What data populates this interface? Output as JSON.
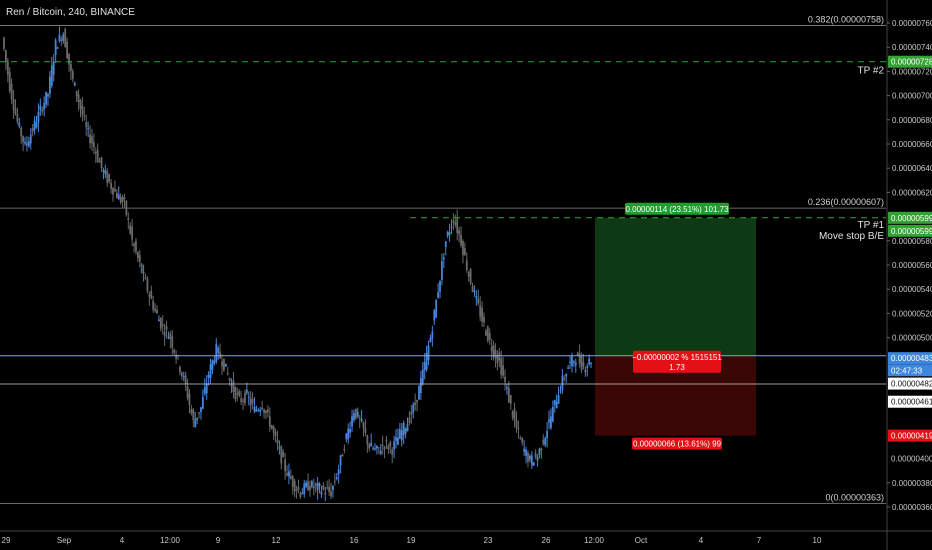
{
  "header": {
    "title": "Ren / Bitcoin, 240, BINANCE"
  },
  "colors": {
    "background": "#000000",
    "candle_up": "#4a86d8",
    "candle_down": "#6a6a6a",
    "profit_zone": "#0d3a15",
    "loss_zone": "#3a0606",
    "profit_label": "#1e9e2e",
    "loss_label": "#e31016",
    "tp_green": "#34a334",
    "price_blue": "#3d86de",
    "axis_text": "#c8c8c8"
  },
  "chart_data": {
    "type": "candlestick",
    "title": "Ren / Bitcoin, 240, BINANCE",
    "ylim": [
      3.5e-06,
      7.7e-06
    ],
    "y_ticks": [
      "0.00000760",
      "0.00000740",
      "0.00000720",
      "0.00000700",
      "0.00000680",
      "0.00000660",
      "0.00000640",
      "0.00000620",
      "0.00000580",
      "0.00000560",
      "0.00000540",
      "0.00000520",
      "0.00000500",
      "0.00000380",
      "0.00000360"
    ],
    "x_ticks": [
      "29",
      "Sep",
      "4",
      "12:00",
      "9",
      "12",
      "16",
      "19",
      "23",
      "26",
      "12:00",
      "Oct",
      "4",
      "7",
      "10"
    ],
    "fib_levels": [
      {
        "label": "0.382(0.00000758)",
        "value": 7.58e-06
      },
      {
        "label": "0.236(0.00000607)",
        "value": 6.07e-06
      },
      {
        "label": "0(0.00000363)",
        "value": 3.63e-06
      }
    ],
    "targets": [
      {
        "name": "TP #2",
        "value": 7.28e-06,
        "price_label": "0.00000728"
      },
      {
        "name": "TP #1",
        "value": 5.99e-06,
        "price_label": "0.00000599"
      },
      {
        "name": "Move stop B/E",
        "value": 5.99e-06,
        "price_label": "0.00000599"
      }
    ],
    "position": {
      "entry": 4.85e-06,
      "target": 5.99e-06,
      "stop": 4.19e-06,
      "profit_label": "0.00000114 (23.51%) 101.73",
      "entry_label_line1": "−0.00000002 % 1515151",
      "entry_label_line2": "1.73",
      "loss_label": "0.00000066 (13.61%) 99"
    },
    "price_tags": [
      {
        "label": "0.00000485",
        "value": 4.85e-06,
        "style": "line"
      },
      {
        "label": "0.00000483",
        "value": 4.83e-06,
        "style": "blue"
      },
      {
        "label": "02:47:33",
        "value": 4.73e-06,
        "style": "blue"
      },
      {
        "label": "0.00000482",
        "value": 4.62e-06,
        "style": "plain"
      },
      {
        "label": "0.00000461",
        "value": 4.47e-06,
        "style": "plain"
      },
      {
        "label": "0.00000419",
        "value": 4.19e-06,
        "style": "red"
      },
      {
        "label": "0.00000400",
        "value": 4e-06,
        "style": "axis"
      }
    ],
    "close_series": [
      7.48e-06,
      7.08e-06,
      6.78e-06,
      6.58e-06,
      6.72e-06,
      6.88e-06,
      7.02e-06,
      7.42e-06,
      7.52e-06,
      7.18e-06,
      6.96e-06,
      6.72e-06,
      6.58e-06,
      6.4e-06,
      6.28e-06,
      6.18e-06,
      6.1e-06,
      5.8e-06,
      5.6e-06,
      5.4e-06,
      5.22e-06,
      5.08e-06,
      5e-06,
      4.8e-06,
      4.6e-06,
      4.3e-06,
      4.42e-06,
      4.7e-06,
      4.9e-06,
      4.78e-06,
      4.6e-06,
      4.48e-06,
      4.52e-06,
      4.4e-06,
      4.45e-06,
      4.3e-06,
      4.1e-06,
      3.92e-06,
      3.8e-06,
      3.72e-06,
      3.78e-06,
      3.76e-06,
      3.74e-06,
      3.72e-06,
      3.92e-06,
      4.18e-06,
      4.4e-06,
      4.28e-06,
      4.1e-06,
      4.06e-06,
      4.12e-06,
      4.08e-06,
      4.2e-06,
      4.3e-06,
      4.45e-06,
      4.7e-06,
      5e-06,
      5.4e-06,
      5.8e-06,
      5.99e-06,
      5.8e-06,
      5.52e-06,
      5.3e-06,
      5.1e-06,
      4.92e-06,
      4.8e-06,
      4.56e-06,
      4.3e-06,
      4.1e-06,
      3.98e-06,
      4.02e-06,
      4.2e-06,
      4.4e-06,
      4.6e-06,
      4.76e-06,
      4.84e-06,
      4.76e-06,
      4.82e-06
    ]
  }
}
